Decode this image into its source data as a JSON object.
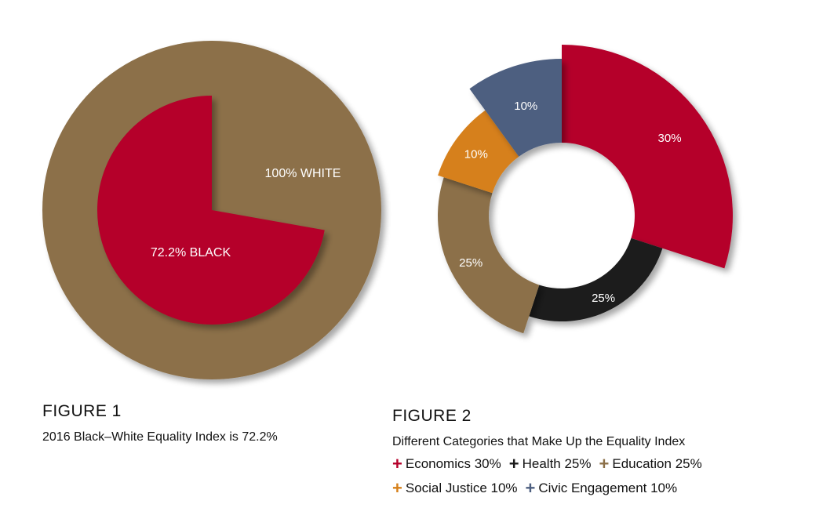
{
  "figure1": {
    "label": "FIGURE 1",
    "caption": "2016 Black–White Equality Index is 72.2%"
  },
  "figure2": {
    "label": "FIGURE 2",
    "caption": "Different Categories that Make Up the Equality Index"
  },
  "legend": [
    {
      "text": "Economics 30%",
      "color": "#b5002a"
    },
    {
      "text": "Health 25%",
      "color": "#1a1a1a"
    },
    {
      "text": "Education 25%",
      "color": "#8c7049"
    },
    {
      "text": "Social Justice 10%",
      "color": "#d6801a"
    },
    {
      "text": "Civic Engagement 10%",
      "color": "#4e5f80"
    }
  ],
  "chart_data": [
    {
      "type": "pie",
      "title": "",
      "slices": [
        {
          "label": "100% WHITE",
          "value": 100,
          "color": "#8c7049"
        },
        {
          "label": "72.2% BLACK",
          "value": 72.2,
          "color": "#b5002a"
        }
      ]
    },
    {
      "type": "pie",
      "title": "",
      "slices": [
        {
          "label": "30%",
          "category": "Economics",
          "value": 30,
          "color": "#b5002a"
        },
        {
          "label": "25%",
          "category": "Health",
          "value": 25,
          "color": "#1a1a1a"
        },
        {
          "label": "25%",
          "category": "Education",
          "value": 25,
          "color": "#8c7049"
        },
        {
          "label": "10%",
          "category": "Social Justice",
          "value": 10,
          "color": "#d6801a"
        },
        {
          "label": "10%",
          "category": "Civic Engagement",
          "value": 10,
          "color": "#4e5f80"
        }
      ]
    }
  ]
}
